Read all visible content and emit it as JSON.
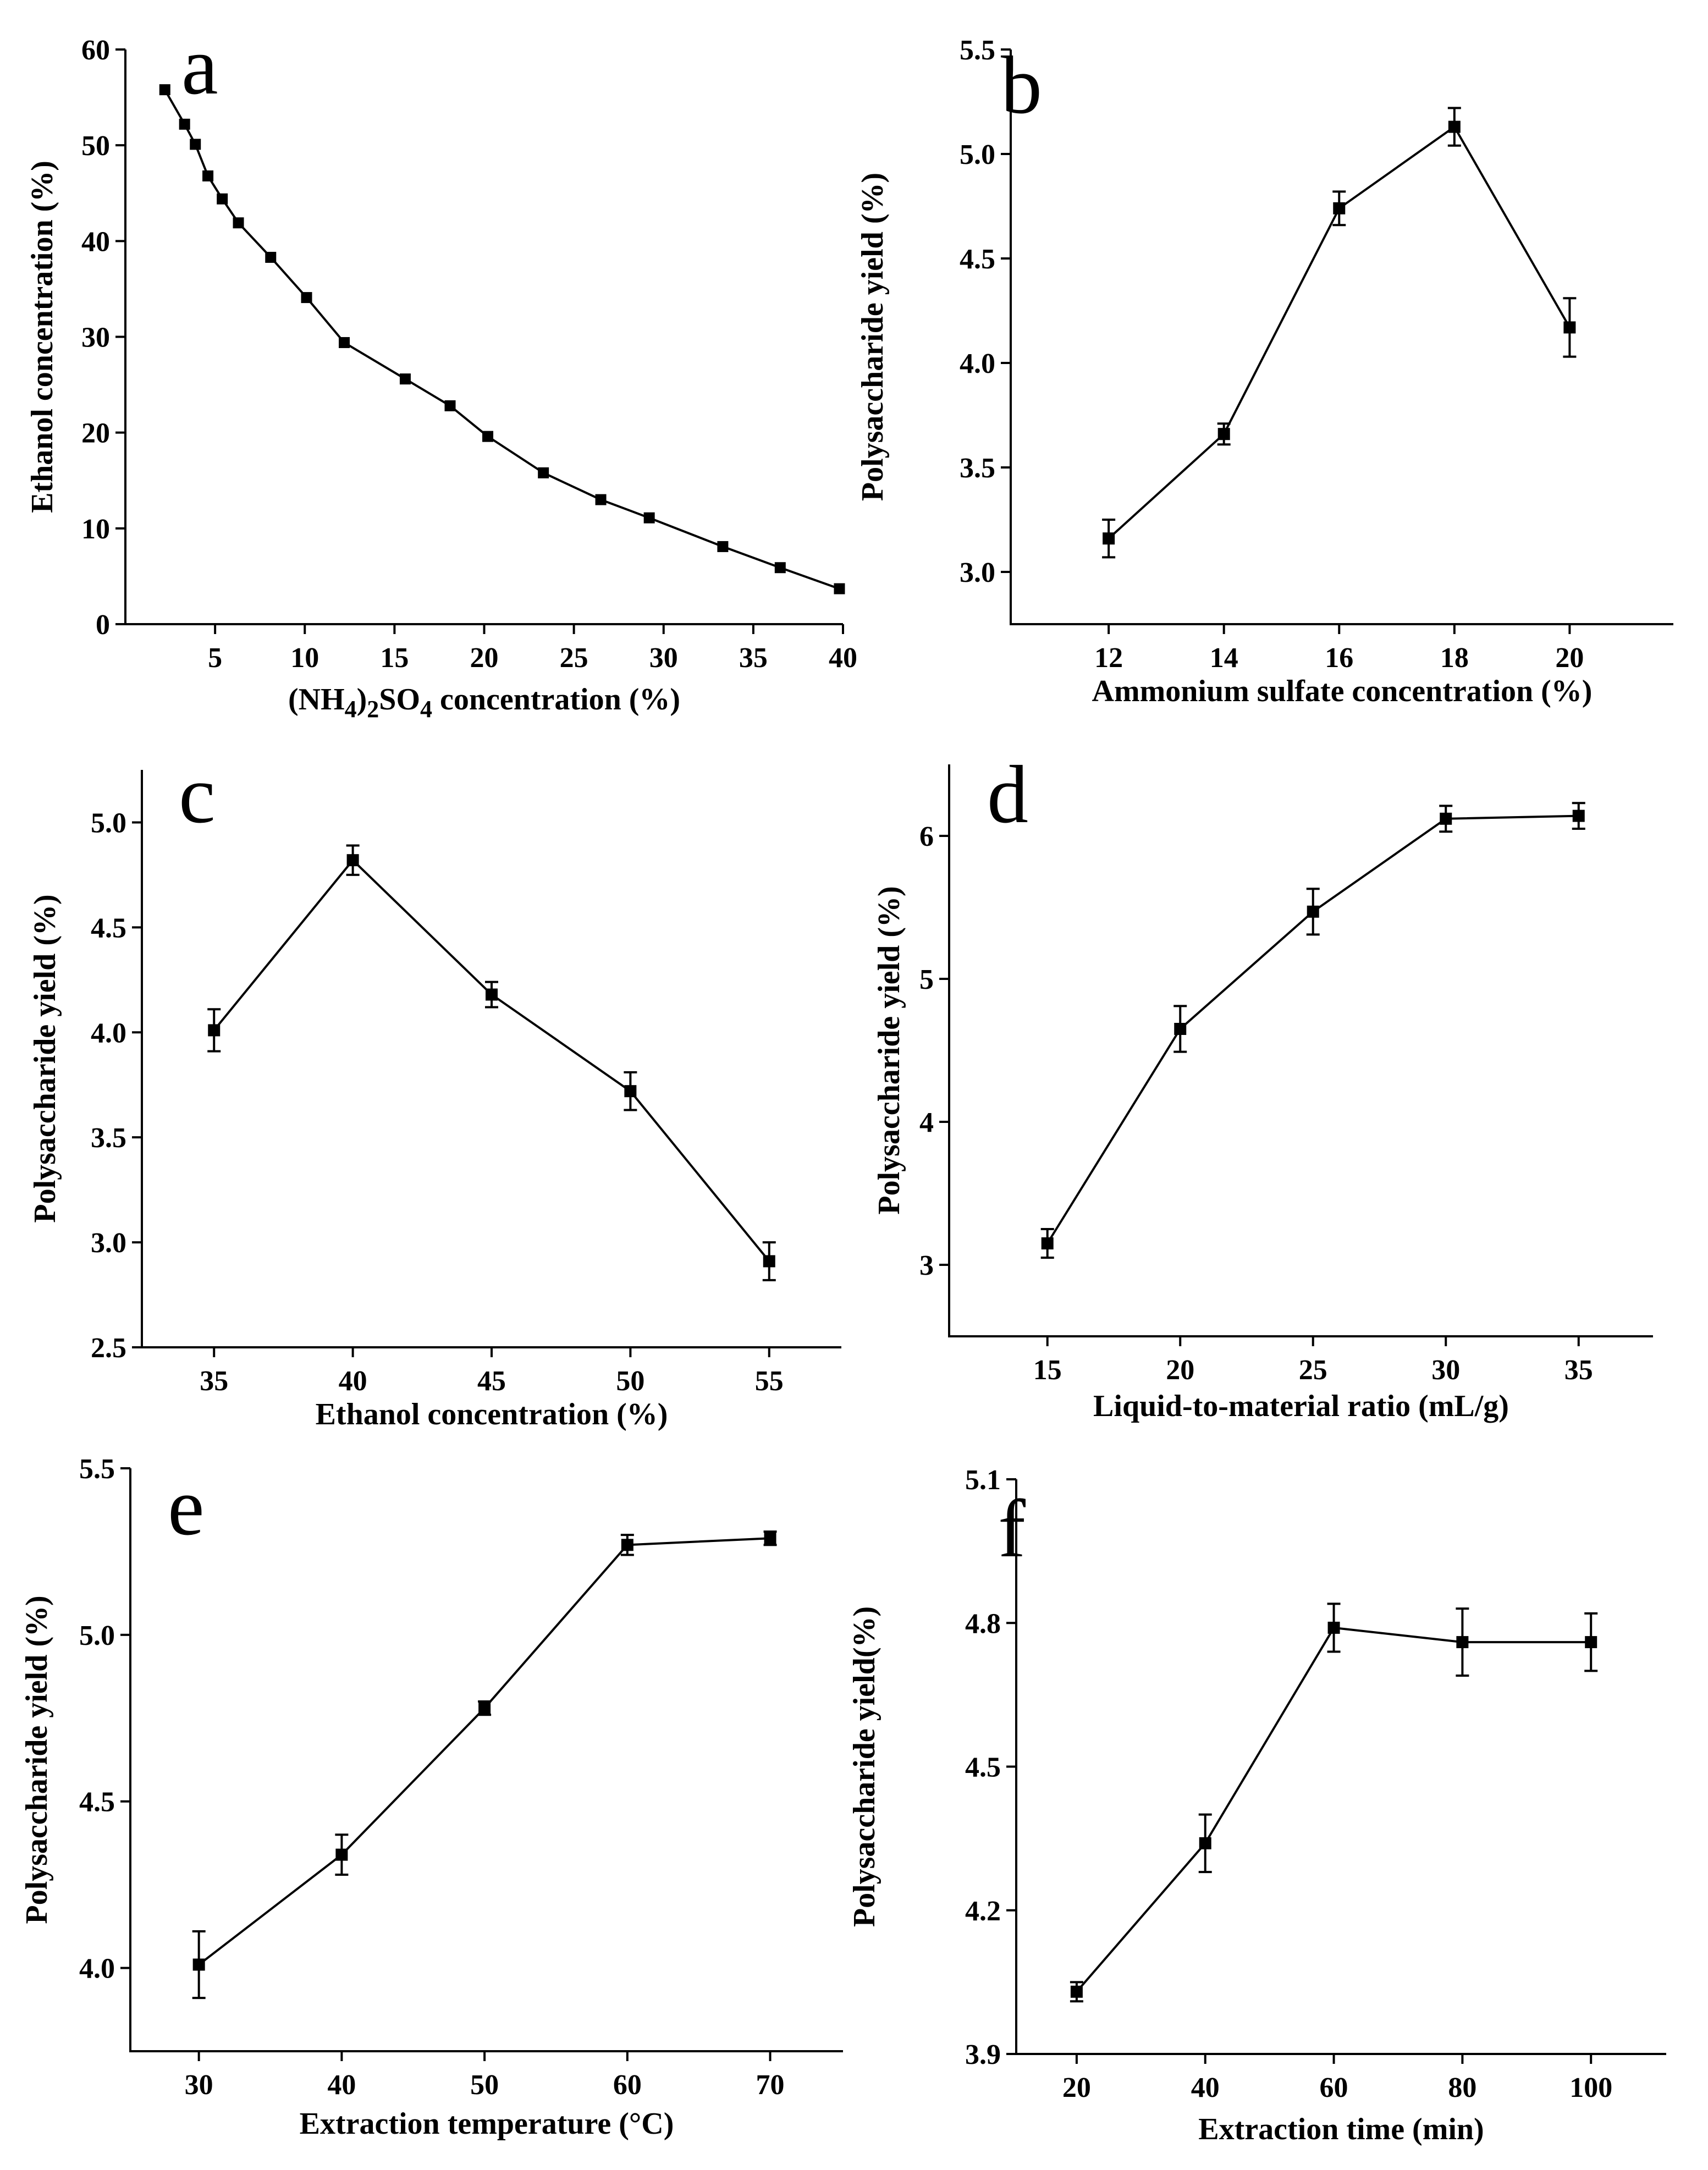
{
  "figure": {
    "background": "#ffffff",
    "color": "#000000"
  },
  "chart_data": [
    {
      "id": "a",
      "panel_label": "a",
      "type": "line",
      "xlabel_parts": [
        "(NH",
        "4",
        ")",
        "2",
        "SO",
        "4",
        " concentration (%)"
      ],
      "xlabel": "(NH4)2SO4 concentration (%)",
      "ylabel": "Ethanol concentration (%)",
      "xlim": [
        0,
        40
      ],
      "ylim": [
        0,
        60
      ],
      "xticks": [
        5,
        10,
        15,
        20,
        25,
        30,
        35,
        40
      ],
      "yticks": [
        0,
        10,
        20,
        30,
        40,
        50,
        60
      ],
      "xtick_labels": [
        "5",
        "10",
        "15",
        "20",
        "25",
        "30",
        "35",
        "40"
      ],
      "ytick_labels": [
        "0",
        "10",
        "20",
        "30",
        "40",
        "50",
        "60"
      ],
      "x": [
        2.2,
        3.3,
        3.9,
        4.6,
        5.4,
        6.3,
        8.1,
        10.1,
        12.2,
        15.6,
        18.1,
        20.2,
        23.3,
        26.5,
        29.2,
        33.3,
        36.5,
        39.8
      ],
      "y": [
        55.8,
        52.2,
        50.1,
        46.8,
        44.4,
        41.9,
        38.3,
        34.1,
        29.4,
        25.6,
        22.8,
        19.6,
        15.8,
        13.0,
        11.1,
        8.1,
        5.9,
        3.7
      ],
      "error": null
    },
    {
      "id": "b",
      "panel_label": "b",
      "type": "line",
      "xlabel": "Ammonium sulfate concentration (%)",
      "ylabel": "Polysaccharide yield (%)",
      "xlim": [
        10.3,
        21.8
      ],
      "ylim": [
        2.75,
        5.5
      ],
      "xticks": [
        12,
        14,
        16,
        18,
        20
      ],
      "yticks": [
        3.0,
        3.5,
        4.0,
        4.5,
        5.0,
        5.5
      ],
      "xtick_labels": [
        "12",
        "14",
        "16",
        "18",
        "20"
      ],
      "ytick_labels": [
        "3.0",
        "3.5",
        "4.0",
        "4.5",
        "5.0",
        "5.5"
      ],
      "x": [
        12,
        14,
        16,
        18,
        20
      ],
      "y": [
        3.16,
        3.66,
        4.74,
        5.13,
        4.17
      ],
      "error": [
        0.09,
        0.05,
        0.08,
        0.09,
        0.14
      ]
    },
    {
      "id": "c",
      "panel_label": "c",
      "type": "line",
      "xlabel": "Ethanol concentration (%)",
      "ylabel": "Polysaccharide yield (%)",
      "xlim": [
        32.4,
        57.6
      ],
      "ylim": [
        2.5,
        5.25
      ],
      "xticks": [
        35,
        40,
        45,
        50,
        55
      ],
      "yticks": [
        2.5,
        3.0,
        3.5,
        4.0,
        4.5,
        5.0
      ],
      "xtick_labels": [
        "35",
        "40",
        "45",
        "50",
        "55"
      ],
      "ytick_labels": [
        "2.5",
        "3.0",
        "3.5",
        "4.0",
        "4.5",
        "5.0"
      ],
      "x": [
        35,
        40,
        45,
        50,
        55
      ],
      "y": [
        4.01,
        4.82,
        4.18,
        3.72,
        2.91
      ],
      "error": [
        0.1,
        0.07,
        0.06,
        0.09,
        0.09
      ]
    },
    {
      "id": "d",
      "panel_label": "d",
      "type": "line",
      "xlabel": "Liquid-to-material ratio (mL/g)",
      "ylabel": "Polysaccharide yield (%)",
      "xlim": [
        11.3,
        37.8
      ],
      "ylim": [
        2.5,
        6.5
      ],
      "xticks": [
        15,
        20,
        25,
        30,
        35
      ],
      "yticks": [
        3,
        4,
        5,
        6
      ],
      "xtick_labels": [
        "15",
        "20",
        "25",
        "30",
        "35"
      ],
      "ytick_labels": [
        "3",
        "4",
        "5",
        "6"
      ],
      "x": [
        15,
        20,
        25,
        30,
        35
      ],
      "y": [
        3.15,
        4.65,
        5.47,
        6.12,
        6.14
      ],
      "error": [
        0.1,
        0.16,
        0.16,
        0.09,
        0.09
      ]
    },
    {
      "id": "e",
      "panel_label": "e",
      "type": "line",
      "xlabel": "Extraction temperature (°C)",
      "ylabel": "Polysaccharide yield (%)",
      "xlim": [
        25.2,
        75.1
      ],
      "ylim": [
        3.75,
        5.5
      ],
      "xticks": [
        30,
        40,
        50,
        60,
        70
      ],
      "yticks": [
        4.0,
        4.5,
        5.0,
        5.5
      ],
      "xtick_labels": [
        "30",
        "40",
        "50",
        "60",
        "70"
      ],
      "ytick_labels": [
        "4.0",
        "4.5",
        "5.0",
        "5.5"
      ],
      "x": [
        30,
        40,
        50,
        60,
        70
      ],
      "y": [
        4.01,
        4.34,
        4.78,
        5.27,
        5.29
      ],
      "error": [
        0.1,
        0.06,
        0.02,
        0.03,
        0.02
      ]
    },
    {
      "id": "f",
      "panel_label": "f",
      "type": "line",
      "xlabel": "Extraction time (min)",
      "ylabel": "Polysaccharide yield(%)",
      "xlim": [
        10.6,
        111.7
      ],
      "ylim": [
        3.9,
        5.1
      ],
      "xticks": [
        20,
        40,
        60,
        80,
        100
      ],
      "yticks": [
        3.9,
        4.2,
        4.5,
        4.8,
        5.1
      ],
      "xtick_labels": [
        "20",
        "40",
        "60",
        "80",
        "100"
      ],
      "ytick_labels": [
        "3.9",
        "4.2",
        "4.5",
        "4.8",
        "5.1"
      ],
      "x": [
        20,
        40,
        60,
        80,
        100
      ],
      "y": [
        4.03,
        4.34,
        4.79,
        4.76,
        4.76
      ],
      "error": [
        0.02,
        0.06,
        0.05,
        0.07,
        0.06
      ]
    }
  ]
}
